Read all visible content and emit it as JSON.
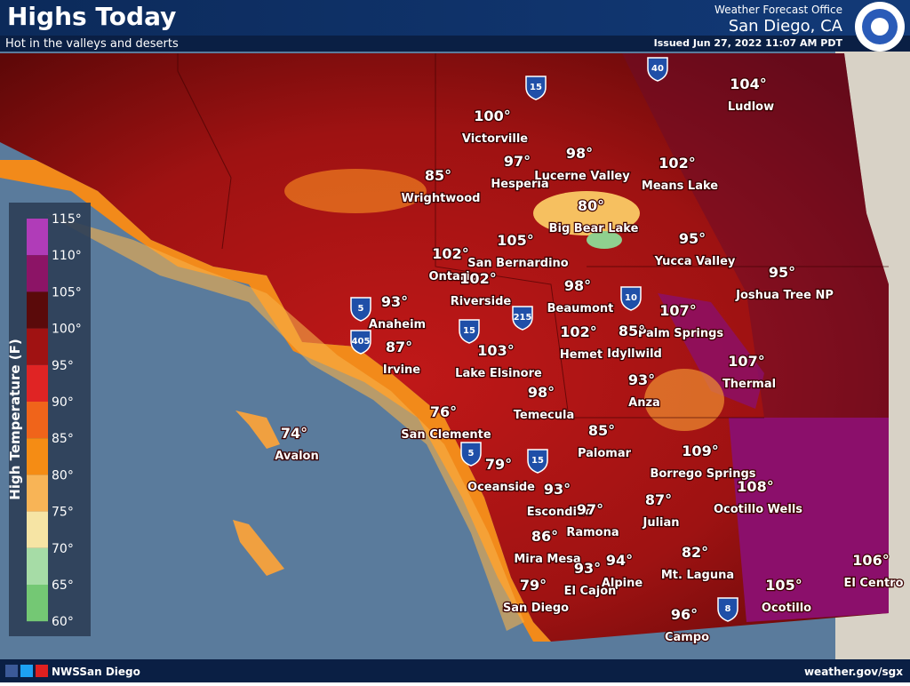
{
  "header": {
    "title": "Highs Today",
    "subtitle": "Hot in the valleys and deserts",
    "office": "Weather Forecast Office",
    "location": "San Diego, CA",
    "issued": "Issued Jun 27, 2022 11:07 AM PDT"
  },
  "legend": {
    "title": "High Temperature (F)",
    "labels": [
      "115°",
      "110°",
      "105°",
      "100°",
      "95°",
      "90°",
      "85°",
      "80°",
      "75°",
      "70°",
      "65°",
      "60°"
    ]
  },
  "cities": [
    {
      "name": "Ludlow",
      "temp": "104°"
    },
    {
      "name": "Victorville",
      "temp": "100°"
    },
    {
      "name": "Hesperia",
      "temp": "97°"
    },
    {
      "name": "Lucerne Valley",
      "temp": "98°"
    },
    {
      "name": "Means Lake",
      "temp": "102°"
    },
    {
      "name": "Wrightwood",
      "temp": "85°"
    },
    {
      "name": "Big Bear Lake",
      "temp": "80°"
    },
    {
      "name": "San Bernardino",
      "temp": "105°"
    },
    {
      "name": "Yucca Valley",
      "temp": "95°"
    },
    {
      "name": "Ontario",
      "temp": "102°"
    },
    {
      "name": "Riverside",
      "temp": "102°"
    },
    {
      "name": "Joshua Tree NP",
      "temp": "95°"
    },
    {
      "name": "Anaheim",
      "temp": "93°"
    },
    {
      "name": "Beaumont",
      "temp": "98°"
    },
    {
      "name": "Palm Springs",
      "temp": "107°"
    },
    {
      "name": "Irvine",
      "temp": "87°"
    },
    {
      "name": "Hemet",
      "temp": "102°"
    },
    {
      "name": "Idyllwild",
      "temp": "85°"
    },
    {
      "name": "Lake Elsinore",
      "temp": "103°"
    },
    {
      "name": "Thermal",
      "temp": "107°"
    },
    {
      "name": "Anza",
      "temp": "93°"
    },
    {
      "name": "Temecula",
      "temp": "98°"
    },
    {
      "name": "San Clemente",
      "temp": "76°"
    },
    {
      "name": "Avalon",
      "temp": "74°"
    },
    {
      "name": "Palomar",
      "temp": "85°"
    },
    {
      "name": "Borrego Springs",
      "temp": "109°"
    },
    {
      "name": "Oceanside",
      "temp": "79°"
    },
    {
      "name": "Ocotillo Wells",
      "temp": "108°"
    },
    {
      "name": "Escondido",
      "temp": "93°"
    },
    {
      "name": "Ramona",
      "temp": "97°"
    },
    {
      "name": "Julian",
      "temp": "87°"
    },
    {
      "name": "Mira Mesa",
      "temp": "86°"
    },
    {
      "name": "Mt. Laguna",
      "temp": "82°"
    },
    {
      "name": "Alpine",
      "temp": "94°"
    },
    {
      "name": "El Cajon",
      "temp": "93°"
    },
    {
      "name": "El Centro",
      "temp": "106°"
    },
    {
      "name": "San Diego",
      "temp": "79°"
    },
    {
      "name": "Ocotillo",
      "temp": "105°"
    },
    {
      "name": "Campo",
      "temp": "96°"
    }
  ],
  "shields": [
    "40",
    "15",
    "10",
    "215",
    "15",
    "5",
    "405",
    "5",
    "15",
    "8"
  ],
  "footer": {
    "social": "NWSSan Diego",
    "url": "weather.gov/sgx"
  }
}
